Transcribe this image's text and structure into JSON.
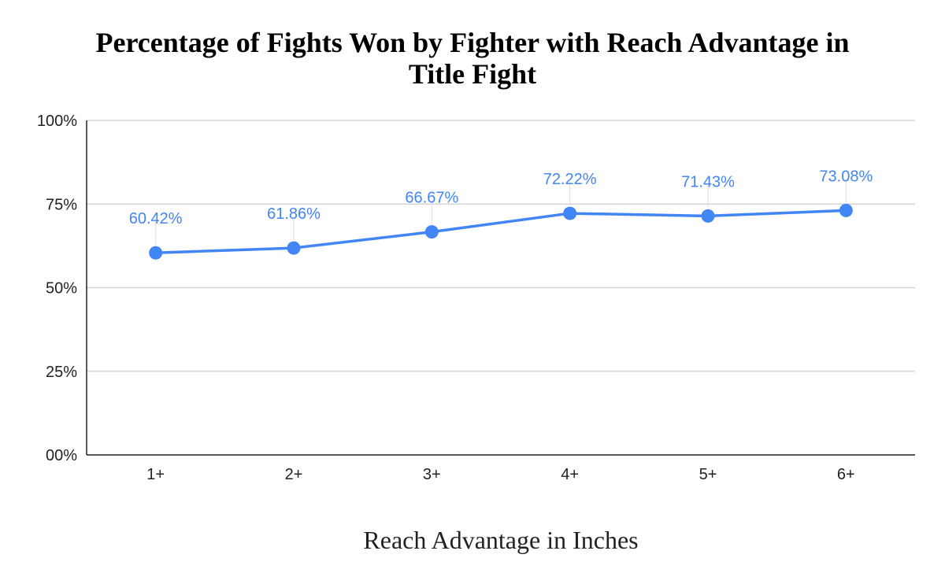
{
  "chart_data": {
    "type": "line",
    "title_lines": [
      "Percentage of Fights Won by Fighter with Reach Advantage in",
      "Title Fight"
    ],
    "xlabel": "Reach Advantage in Inches",
    "ylabel": "",
    "categories": [
      "1+",
      "2+",
      "3+",
      "4+",
      "5+",
      "6+"
    ],
    "series": [
      {
        "values": [
          60.42,
          61.86,
          66.67,
          72.22,
          71.43,
          73.08
        ],
        "data_labels": [
          "60.42%",
          "61.86%",
          "66.67%",
          "72.22%",
          "71.43%",
          "73.08%"
        ],
        "color": "#4285F4"
      }
    ],
    "ylim": [
      0,
      100
    ],
    "yticks": [
      0,
      25,
      50,
      75,
      100
    ],
    "ytick_labels": [
      "00%",
      "25%",
      "50%",
      "75%",
      "100%"
    ],
    "grid": true,
    "legend": "none"
  }
}
